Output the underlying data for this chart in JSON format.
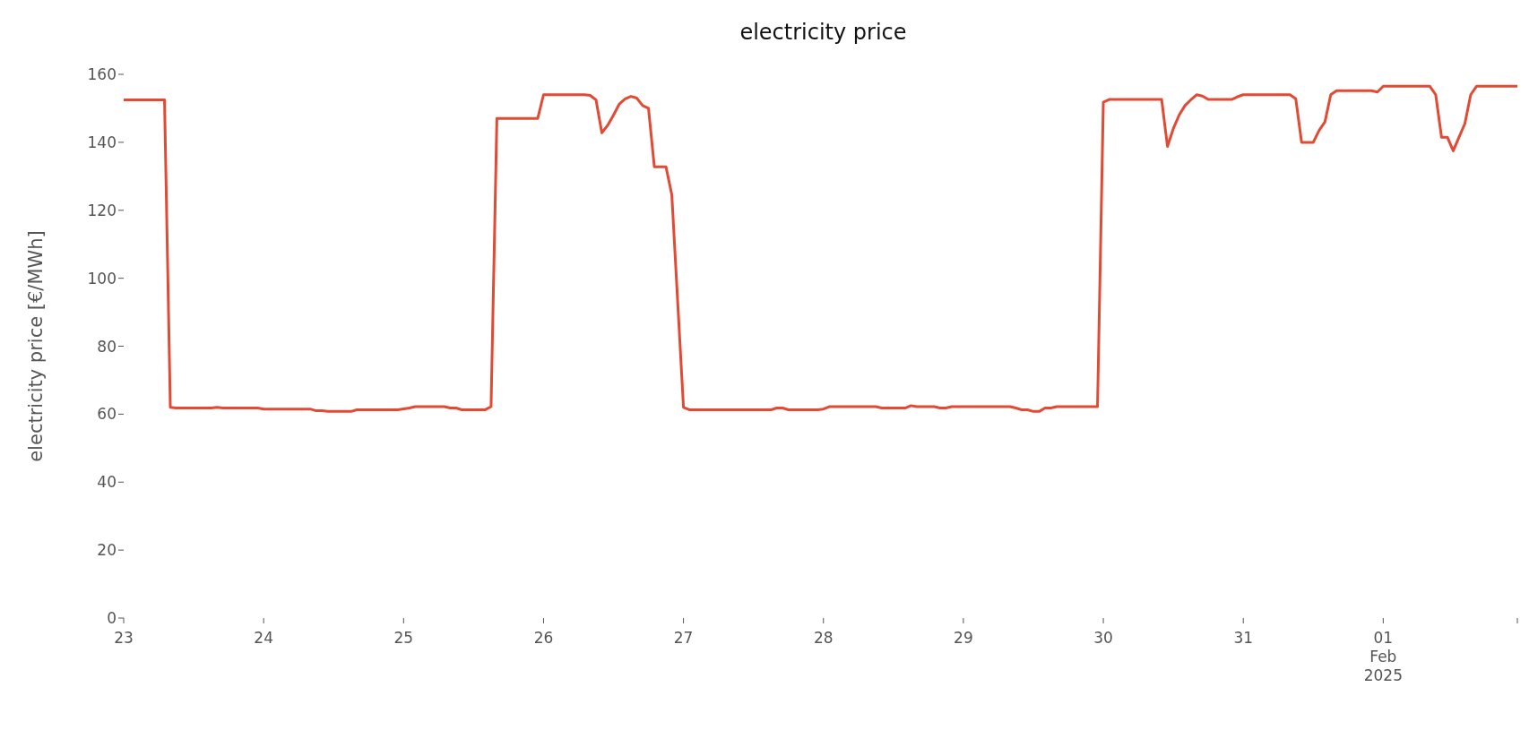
{
  "chart_data": {
    "type": "line",
    "title": "electricity price",
    "ylabel": "electricity price [€/MWh]",
    "x": [
      "2025-01-23T00:00",
      "2025-01-23T07:00",
      "2025-01-23T08:00",
      "2025-01-23T09:00",
      "2025-01-23T15:00",
      "2025-01-23T16:00",
      "2025-01-23T17:00",
      "2025-01-23T23:00",
      "2025-01-24T00:00",
      "2025-01-24T08:00",
      "2025-01-24T09:00",
      "2025-01-24T10:00",
      "2025-01-24T11:00",
      "2025-01-24T15:00",
      "2025-01-24T16:00",
      "2025-01-24T23:00",
      "2025-01-25T01:00",
      "2025-01-25T02:00",
      "2025-01-25T07:00",
      "2025-01-25T08:00",
      "2025-01-25T09:00",
      "2025-01-25T10:00",
      "2025-01-25T14:00",
      "2025-01-25T15:00",
      "2025-01-25T16:00",
      "2025-01-25T23:00",
      "2025-01-26T00:00",
      "2025-01-26T07:00",
      "2025-01-26T08:00",
      "2025-01-26T09:00",
      "2025-01-26T10:00",
      "2025-01-26T11:00",
      "2025-01-26T12:00",
      "2025-01-26T13:00",
      "2025-01-26T14:00",
      "2025-01-26T15:00",
      "2025-01-26T16:00",
      "2025-01-26T17:00",
      "2025-01-26T18:00",
      "2025-01-26T19:00",
      "2025-01-26T21:00",
      "2025-01-26T22:00",
      "2025-01-27T00:00",
      "2025-01-27T01:00",
      "2025-01-27T15:00",
      "2025-01-27T16:00",
      "2025-01-27T17:00",
      "2025-01-27T18:00",
      "2025-01-27T23:00",
      "2025-01-28T00:00",
      "2025-01-28T01:00",
      "2025-01-28T09:00",
      "2025-01-28T10:00",
      "2025-01-28T14:00",
      "2025-01-28T15:00",
      "2025-01-28T16:00",
      "2025-01-28T19:00",
      "2025-01-28T20:00",
      "2025-01-28T21:00",
      "2025-01-28T22:00",
      "2025-01-29T08:00",
      "2025-01-29T09:00",
      "2025-01-29T10:00",
      "2025-01-29T11:00",
      "2025-01-29T12:00",
      "2025-01-29T13:00",
      "2025-01-29T14:00",
      "2025-01-29T15:00",
      "2025-01-29T16:00",
      "2025-01-29T23:00",
      "2025-01-30T00:00",
      "2025-01-30T01:00",
      "2025-01-30T10:00",
      "2025-01-30T11:00",
      "2025-01-30T12:00",
      "2025-01-30T13:00",
      "2025-01-30T14:00",
      "2025-01-30T15:00",
      "2025-01-30T16:00",
      "2025-01-30T17:00",
      "2025-01-30T18:00",
      "2025-01-30T22:00",
      "2025-01-30T23:00",
      "2025-01-31T00:00",
      "2025-01-31T08:00",
      "2025-01-31T09:00",
      "2025-01-31T10:00",
      "2025-01-31T12:00",
      "2025-01-31T13:00",
      "2025-01-31T14:00",
      "2025-01-31T15:00",
      "2025-01-31T16:00",
      "2025-01-31T22:00",
      "2025-01-31T23:00",
      "2025-02-01T00:00",
      "2025-02-01T08:00",
      "2025-02-01T09:00",
      "2025-02-01T10:00",
      "2025-02-01T11:00",
      "2025-02-01T12:00",
      "2025-02-01T13:00",
      "2025-02-01T14:00",
      "2025-02-01T15:00",
      "2025-02-01T16:00",
      "2025-02-01T23:00"
    ],
    "series": [
      {
        "color": "#e24a33",
        "values": [
          152.5,
          152.5,
          62,
          61.8,
          61.8,
          62,
          61.8,
          61.8,
          61.5,
          61.5,
          61,
          61,
          60.8,
          60.8,
          61.3,
          61.3,
          61.8,
          62.2,
          62.2,
          61.8,
          61.8,
          61.3,
          61.3,
          62.2,
          147,
          147,
          154,
          154,
          153.8,
          152.5,
          142.8,
          145,
          148,
          151.3,
          152.8,
          153.5,
          153,
          150.8,
          150,
          132.8,
          132.8,
          124.5,
          62,
          61.3,
          61.3,
          61.8,
          61.8,
          61.3,
          61.3,
          61.5,
          62.2,
          62.2,
          61.8,
          61.8,
          62.5,
          62.2,
          62.2,
          61.8,
          61.8,
          62.2,
          62.2,
          61.8,
          61.3,
          61.3,
          60.8,
          60.8,
          61.8,
          61.8,
          62.2,
          62.2,
          151.8,
          152.6,
          152.6,
          138.8,
          144,
          148,
          150.8,
          152.5,
          154,
          153.6,
          152.6,
          152.6,
          153.4,
          154,
          154,
          152.8,
          140,
          140,
          143.5,
          146,
          154,
          155.2,
          155.2,
          154.8,
          156.5,
          156.5,
          154,
          141.5,
          141.5,
          137.5,
          141.5,
          145.5,
          154,
          156.5,
          156.5
        ]
      }
    ],
    "xlim": [
      "2025-01-23T00:00",
      "2025-02-01T23:00"
    ],
    "xticks": [
      {
        "value": "2025-01-23",
        "label": "23"
      },
      {
        "value": "2025-01-24",
        "label": "24"
      },
      {
        "value": "2025-01-25",
        "label": "25"
      },
      {
        "value": "2025-01-26",
        "label": "26"
      },
      {
        "value": "2025-01-27",
        "label": "27"
      },
      {
        "value": "2025-01-28",
        "label": "28"
      },
      {
        "value": "2025-01-29",
        "label": "29"
      },
      {
        "value": "2025-01-30",
        "label": "30"
      },
      {
        "value": "2025-01-31",
        "label": "31"
      },
      {
        "value": "2025-02-01",
        "label": "01\nFeb\n2025"
      },
      {
        "value": "2025-02-01T23:00",
        "label": null
      }
    ],
    "ylim": [
      0,
      160
    ],
    "yticks": [
      0,
      20,
      40,
      60,
      80,
      100,
      120,
      140,
      160
    ],
    "grid": false,
    "legend": false,
    "marker": "none",
    "line_style": "solid"
  }
}
